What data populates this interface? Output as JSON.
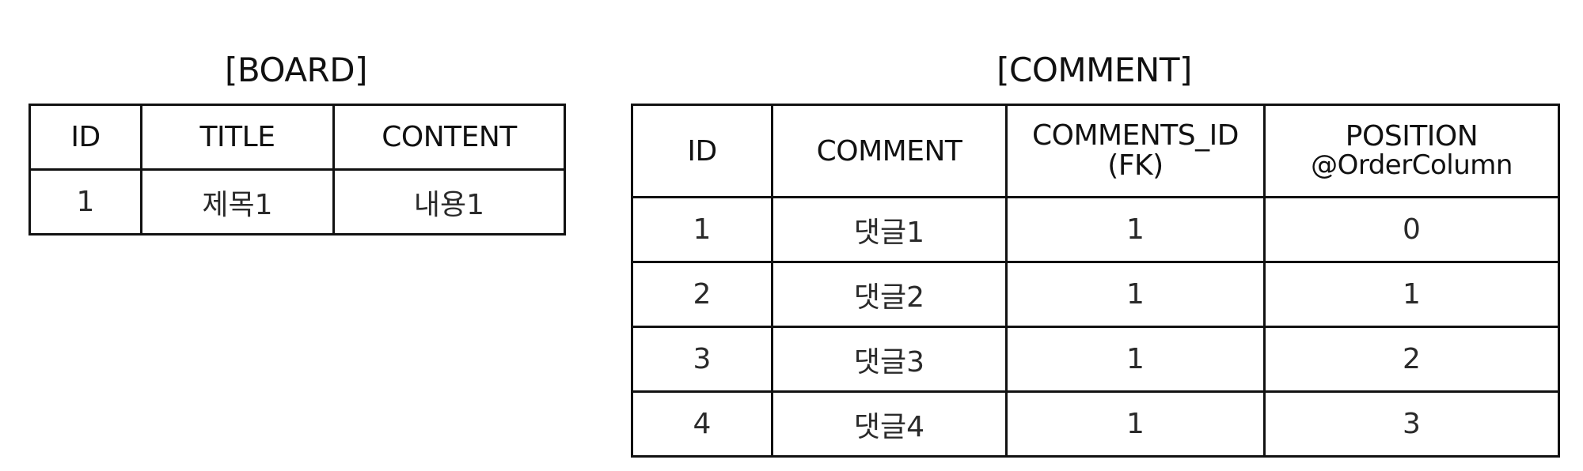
{
  "board": {
    "title": "[BOARD]",
    "headers": [
      "ID",
      "TITLE",
      "CONTENT"
    ],
    "rows": [
      [
        "1",
        "제목1",
        "내용1"
      ]
    ]
  },
  "comment": {
    "title": "[COMMENT]",
    "headers": {
      "id": "ID",
      "comment": "COMMENT",
      "comments_id_line1": "COMMENTS_ID",
      "comments_id_line2": "(FK)",
      "position_line1": "POSITION",
      "position_line2": "@OrderColumn"
    },
    "rows": [
      [
        "1",
        "댓글1",
        "1",
        "0"
      ],
      [
        "2",
        "댓글2",
        "1",
        "1"
      ],
      [
        "3",
        "댓글3",
        "1",
        "2"
      ],
      [
        "4",
        "댓글4",
        "1",
        "3"
      ]
    ]
  }
}
